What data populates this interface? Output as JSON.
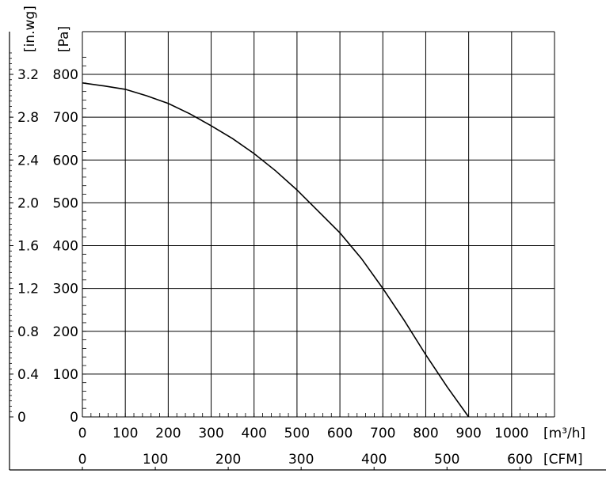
{
  "chart_data": {
    "type": "line",
    "title": "",
    "xlabel": "[m³/h]",
    "xlabel_secondary": "[CFM]",
    "ylabel": "[Pa]",
    "ylabel_secondary": "[in.wg]",
    "xlim": [
      0,
      1100
    ],
    "ylim": [
      0,
      800
    ],
    "grid": true,
    "x_ticks_m3h": [
      "0",
      "100",
      "200",
      "300",
      "400",
      "500",
      "600",
      "700",
      "800",
      "900",
      "1000"
    ],
    "x_ticks_cfm": [
      "0",
      "100",
      "200",
      "300",
      "400",
      "500",
      "600"
    ],
    "y_ticks_pa": [
      "0",
      "100",
      "200",
      "300",
      "400",
      "500",
      "600",
      "700",
      "800"
    ],
    "y_ticks_inwg": [
      "0",
      "0.4",
      "0.8",
      "1.2",
      "1.6",
      "2.0",
      "2.4",
      "2.8",
      "3.2"
    ],
    "series": [
      {
        "x": [
          0,
          50,
          100,
          150,
          200,
          250,
          300,
          350,
          400,
          450,
          500,
          550,
          600,
          650,
          700,
          750,
          800,
          850,
          900
        ],
        "y": [
          780,
          773,
          765,
          750,
          732,
          708,
          680,
          650,
          615,
          575,
          530,
          480,
          430,
          370,
          300,
          225,
          145,
          70,
          0
        ],
        "color": "#000000"
      }
    ]
  }
}
